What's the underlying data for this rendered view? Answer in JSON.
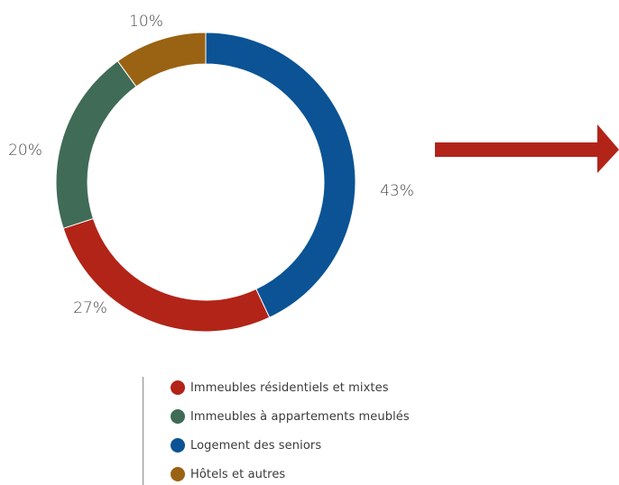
{
  "chart_data": {
    "type": "pie",
    "donut": true,
    "start": "top",
    "direction": "clockwise",
    "slices": [
      {
        "label": "Logement des seniors",
        "value": 43,
        "value_label": "43%",
        "color": "#0b5394"
      },
      {
        "label": "Immeubles résidentiels et mixtes",
        "value": 27,
        "value_label": "27%",
        "color": "#b22418"
      },
      {
        "label": "Immeubles à appartements meublés",
        "value": 20,
        "value_label": "20%",
        "color": "#3f6b57"
      },
      {
        "label": "Hôtels et autres",
        "value": 10,
        "value_label": "10%",
        "color": "#9a6213"
      }
    ],
    "legend": {
      "position": "bottom",
      "entries": [
        {
          "label": "Immeubles résidentiels et mixtes",
          "color": "#b22418"
        },
        {
          "label": "Immeubles à appartements meublés",
          "color": "#3f6b57"
        },
        {
          "label": "Logement des seniors",
          "color": "#0b5394"
        },
        {
          "label": "Hôtels et autres",
          "color": "#9a6213"
        }
      ]
    }
  },
  "arrow": {
    "color": "#b22418",
    "icon": "arrow-right-icon"
  }
}
